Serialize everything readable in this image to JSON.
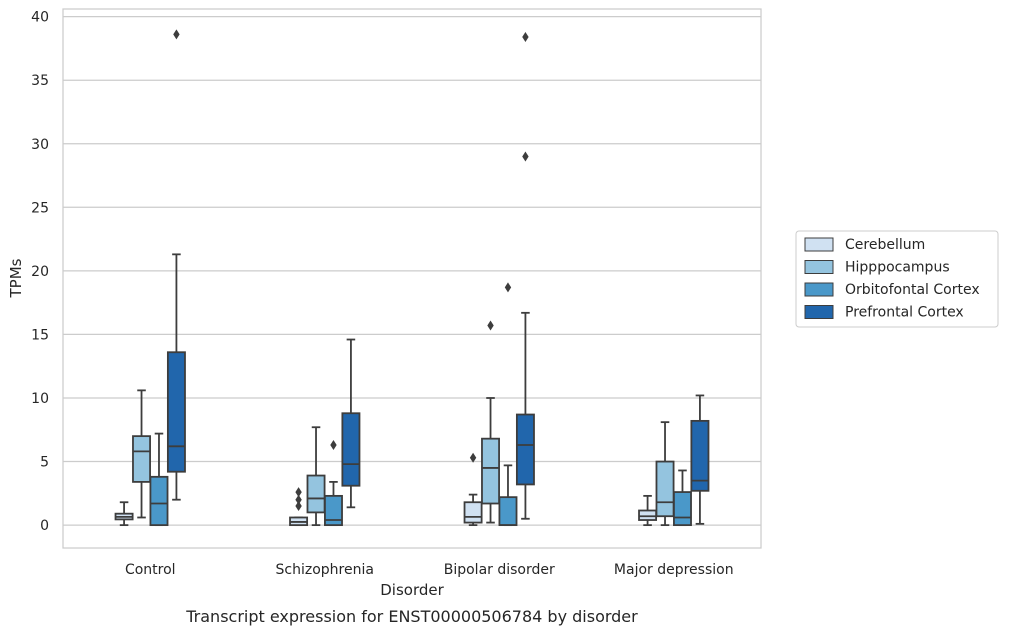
{
  "chart_data": {
    "type": "box",
    "caption": "Transcript expression for ENST00000506784 by disorder",
    "xlabel": "Disorder",
    "ylabel": "TPMs",
    "ylim": [
      -1.8,
      40.6
    ],
    "yticks": [
      0,
      5,
      10,
      15,
      20,
      25,
      30,
      35,
      40
    ],
    "grid": "horizontal",
    "legend_position": "right",
    "categories": [
      "Control",
      "Schizophrenia",
      "Bipolar disorder",
      "Major depression"
    ],
    "series": [
      {
        "name": "Cerebellum",
        "color": "#d0e1f2",
        "boxes": [
          {
            "whislo": 0.0,
            "q1": 0.45,
            "med": 0.65,
            "q3": 0.9,
            "whishi": 1.8,
            "fliers": []
          },
          {
            "whislo": 0.0,
            "q1": 0.0,
            "med": 0.25,
            "q3": 0.6,
            "whishi": 0.6,
            "fliers": [
              1.5,
              2.0,
              2.6
            ]
          },
          {
            "whislo": 0.0,
            "q1": 0.2,
            "med": 0.65,
            "q3": 1.8,
            "whishi": 2.4,
            "fliers": [
              5.3
            ]
          },
          {
            "whislo": 0.0,
            "q1": 0.4,
            "med": 0.7,
            "q3": 1.15,
            "whishi": 2.3,
            "fliers": []
          }
        ]
      },
      {
        "name": "Hipppocampus",
        "color": "#94c4df",
        "boxes": [
          {
            "whislo": 0.6,
            "q1": 3.4,
            "med": 5.8,
            "q3": 7.0,
            "whishi": 10.6,
            "fliers": []
          },
          {
            "whislo": 0.0,
            "q1": 1.0,
            "med": 2.1,
            "q3": 3.9,
            "whishi": 7.7,
            "fliers": []
          },
          {
            "whislo": 0.2,
            "q1": 1.7,
            "med": 4.5,
            "q3": 6.8,
            "whishi": 10.0,
            "fliers": [
              15.7
            ]
          },
          {
            "whislo": 0.0,
            "q1": 0.7,
            "med": 1.8,
            "q3": 5.0,
            "whishi": 8.1,
            "fliers": []
          }
        ]
      },
      {
        "name": "Orbitofontal Cortex",
        "color": "#4a98c9",
        "boxes": [
          {
            "whislo": 0.0,
            "q1": 0.0,
            "med": 1.7,
            "q3": 3.8,
            "whishi": 7.2,
            "fliers": []
          },
          {
            "whislo": 0.0,
            "q1": 0.0,
            "med": 0.4,
            "q3": 2.3,
            "whishi": 3.4,
            "fliers": [
              6.3
            ]
          },
          {
            "whislo": 0.0,
            "q1": 0.0,
            "med": 0.0,
            "q3": 2.2,
            "whishi": 4.7,
            "fliers": [
              18.7
            ]
          },
          {
            "whislo": 0.0,
            "q1": 0.0,
            "med": 0.6,
            "q3": 2.6,
            "whishi": 4.3,
            "fliers": []
          }
        ]
      },
      {
        "name": "Prefrontal Cortex",
        "color": "#2166ac",
        "boxes": [
          {
            "whislo": 2.0,
            "q1": 4.2,
            "med": 6.2,
            "q3": 13.6,
            "whishi": 21.3,
            "fliers": [
              38.6
            ]
          },
          {
            "whislo": 1.4,
            "q1": 3.1,
            "med": 4.8,
            "q3": 8.8,
            "whishi": 14.6,
            "fliers": []
          },
          {
            "whislo": 0.5,
            "q1": 3.2,
            "med": 6.3,
            "q3": 8.7,
            "whishi": 16.7,
            "fliers": [
              29.0,
              38.4
            ]
          },
          {
            "whislo": 0.1,
            "q1": 2.7,
            "med": 3.5,
            "q3": 8.2,
            "whishi": 10.2,
            "fliers": []
          }
        ]
      }
    ]
  }
}
